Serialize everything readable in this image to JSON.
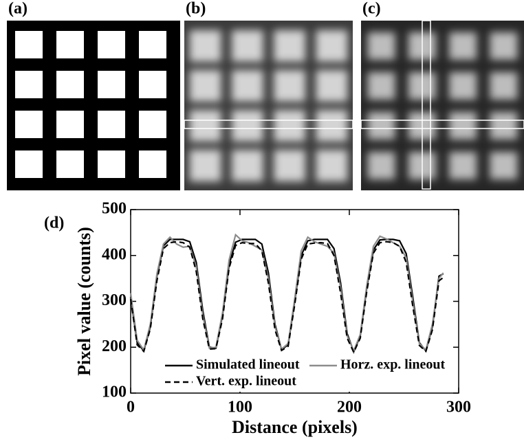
{
  "panels": [
    "(a)",
    "(b)",
    "(c)"
  ],
  "chart_data": {
    "type": "line",
    "panel": "(d)",
    "xlabel": "Distance (pixels)",
    "ylabel": "Pixel value (counts)",
    "xlim": [
      0,
      300
    ],
    "xticks": [
      0,
      100,
      200,
      300
    ],
    "ylim": [
      100,
      500
    ],
    "yticks": [
      100,
      200,
      300,
      400,
      500
    ],
    "x": [
      0,
      6,
      12,
      18,
      24,
      30,
      36,
      42,
      48,
      54,
      60,
      66,
      72,
      78,
      84,
      90,
      96,
      102,
      108,
      114,
      120,
      126,
      132,
      138,
      144,
      150,
      156,
      162,
      168,
      174,
      180,
      186,
      192,
      198,
      204,
      210,
      216,
      222,
      228,
      234,
      240,
      246,
      252,
      258,
      264,
      270,
      276,
      282,
      286
    ],
    "series": [
      {
        "name": "Simulated lineout",
        "color": "#000000",
        "dashed": false,
        "values": [
          310,
          210,
          192,
          245,
          355,
          421,
          435,
          435,
          435,
          430,
          385,
          280,
          200,
          198,
          270,
          380,
          429,
          435,
          435,
          435,
          425,
          362,
          250,
          195,
          205,
          300,
          400,
          432,
          435,
          435,
          435,
          415,
          340,
          230,
          190,
          225,
          330,
          412,
          434,
          435,
          435,
          432,
          404,
          310,
          210,
          192,
          245,
          355,
          360
        ]
      },
      {
        "name": "Horz. exp. lineout",
        "color": "#8c8c8c",
        "dashed": false,
        "values": [
          318,
          215,
          194,
          250,
          360,
          425,
          440,
          425,
          418,
          420,
          375,
          270,
          198,
          200,
          275,
          390,
          445,
          432,
          428,
          420,
          412,
          350,
          245,
          196,
          208,
          305,
          410,
          440,
          430,
          425,
          420,
          405,
          330,
          225,
          192,
          228,
          335,
          420,
          442,
          436,
          428,
          420,
          395,
          300,
          208,
          194,
          250,
          350,
          362
        ]
      },
      {
        "name": "Vert. exp. lineout",
        "color": "#000000",
        "dashed": true,
        "values": [
          305,
          205,
          191,
          240,
          345,
          415,
          428,
          430,
          428,
          418,
          365,
          262,
          196,
          197,
          262,
          372,
          422,
          428,
          426,
          426,
          410,
          340,
          238,
          193,
          202,
          292,
          392,
          425,
          427,
          428,
          426,
          400,
          318,
          220,
          189,
          220,
          322,
          405,
          428,
          430,
          428,
          420,
          385,
          290,
          204,
          191,
          238,
          345,
          352
        ]
      }
    ]
  }
}
